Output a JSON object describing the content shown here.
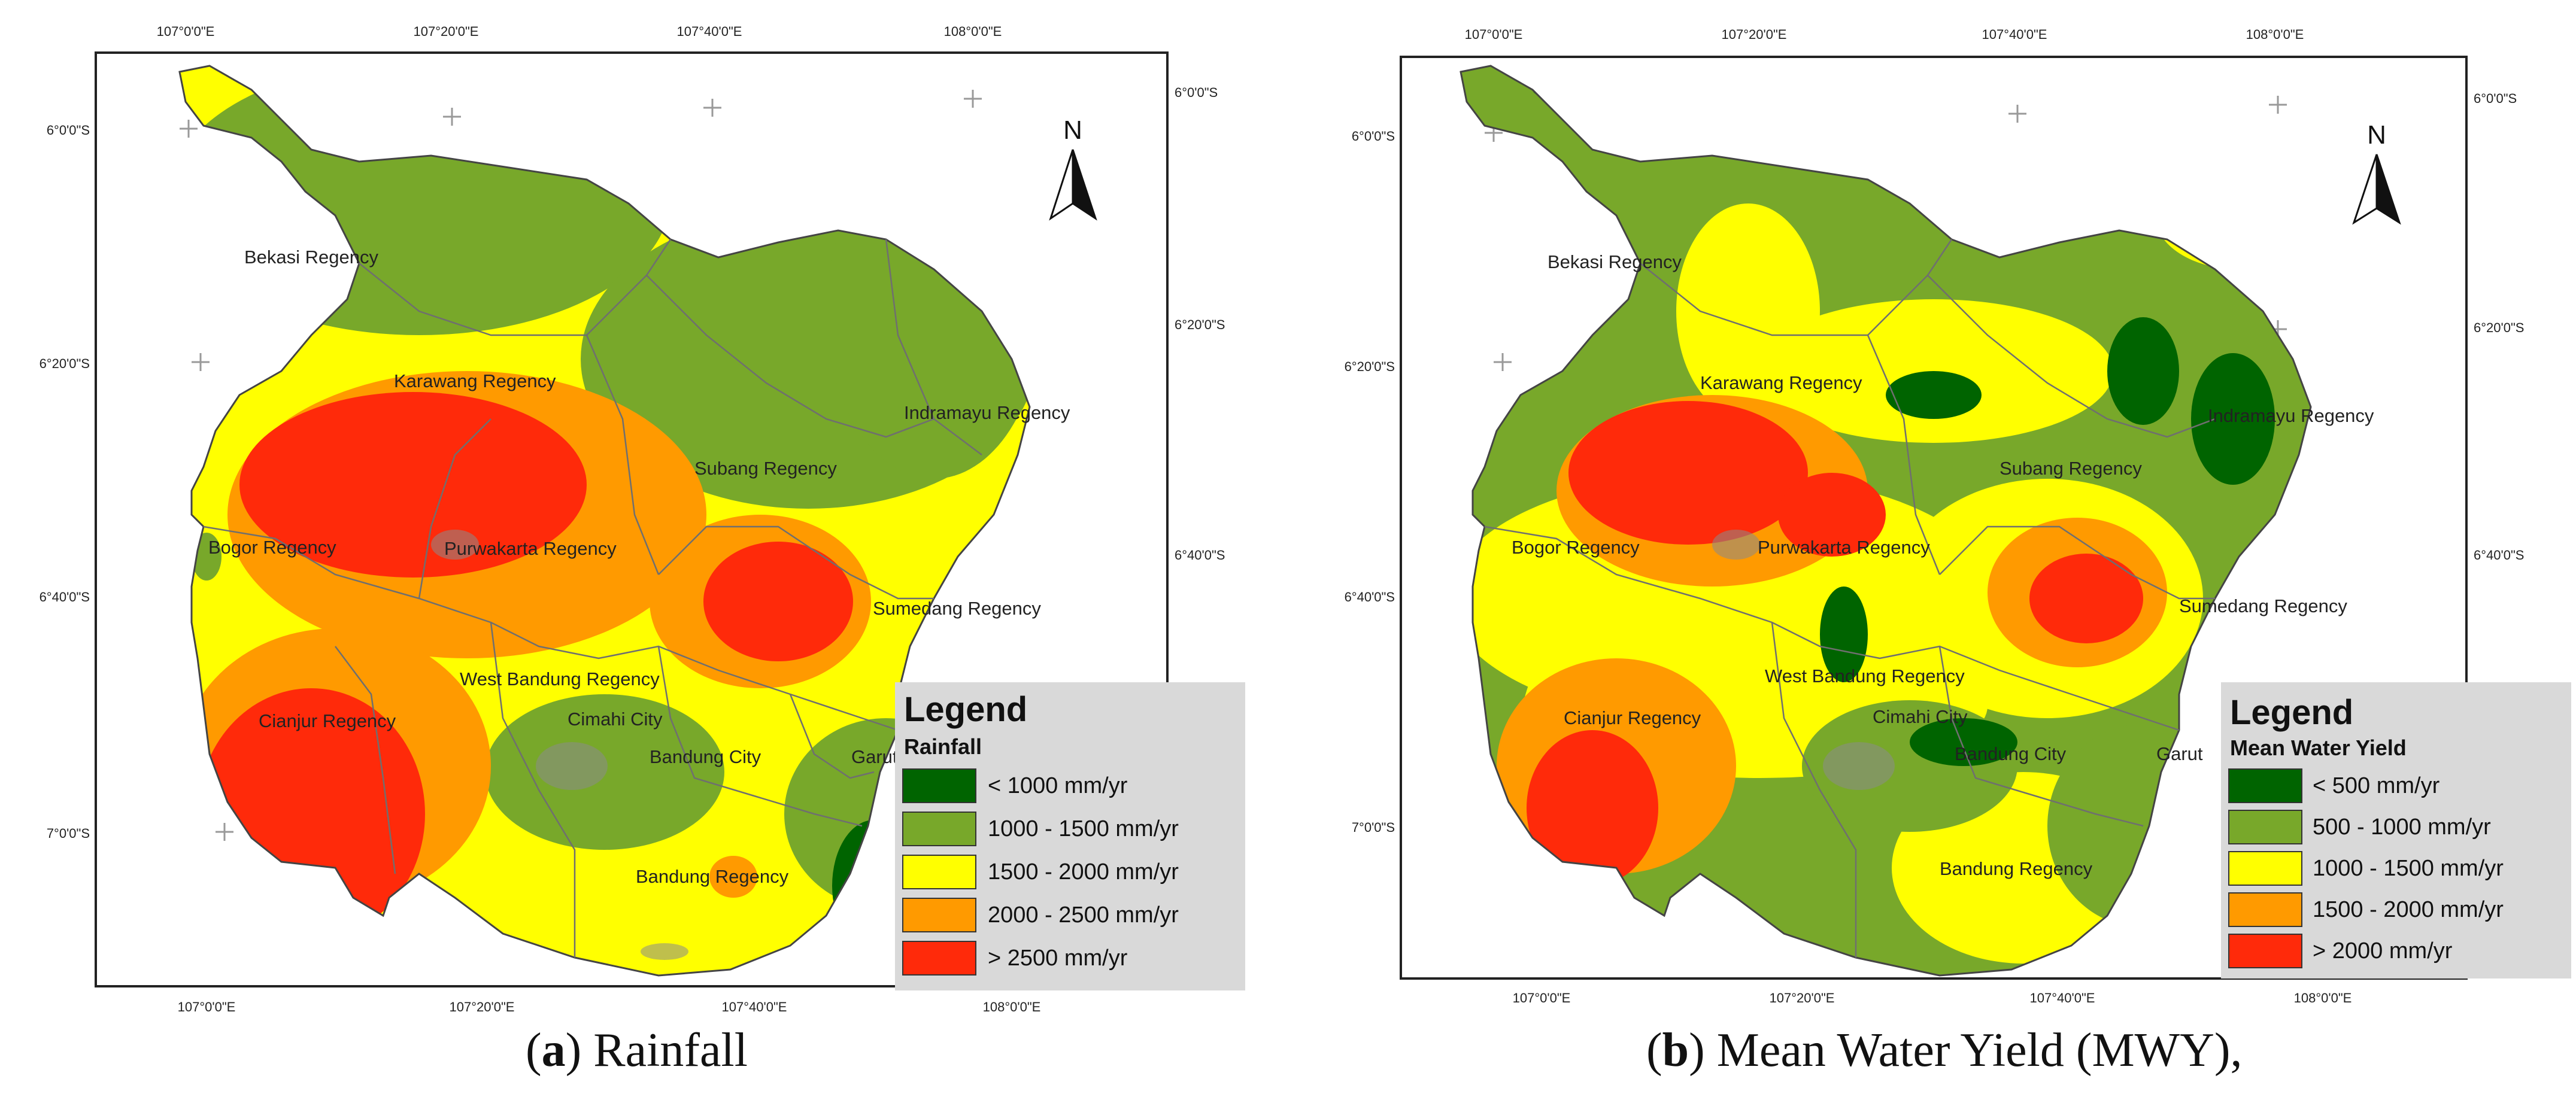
{
  "colors": {
    "dark_green": "#006400",
    "green": "#78a82a",
    "yellow": "#ffff00",
    "orange": "#ff9a00",
    "red": "#ff2a0a",
    "legend_bg": "#d9d9d9"
  },
  "panels": [
    {
      "caption_letter": "a",
      "caption_text": ") Rainfall",
      "caption_open": "(",
      "top_ticks": [
        "107°0'0\"E",
        "107°20'0\"E",
        "107°40'0\"E",
        "108°0'0\"E"
      ],
      "bottom_ticks": [
        "107°0'0\"E",
        "107°20'0\"E",
        "107°40'0\"E",
        "108°0'0\"E"
      ],
      "left_ticks": [
        "6°0'0\"S",
        "6°20'0\"S",
        "6°40'0\"S",
        "7°0'0\"S"
      ],
      "right_ticks": [
        "6°0'0\"S",
        "6°20'0\"S",
        "6°40'0\"S"
      ],
      "north_label": "N",
      "regions": [
        "Bekasi Regency",
        "Karawang Regency",
        "Indramayu Regency",
        "Subang Regency",
        "Bogor Regency",
        "Purwakarta Regency",
        "Sumedang Regency",
        "West Bandung Regency",
        "Cianjur Regency",
        "Cimahi City",
        "Bandung City",
        "Garut",
        "Bandung Regency"
      ],
      "legend": {
        "title": "Legend",
        "subtitle": "Rainfall",
        "items": [
          {
            "label": "< 1000 mm/yr",
            "color": "#006400"
          },
          {
            "label": "1000 - 1500 mm/yr",
            "color": "#78a82a"
          },
          {
            "label": "1500  -  2000 mm/yr",
            "color": "#ffff00"
          },
          {
            "label": "2000 - 2500 mm/yr",
            "color": "#ff9a00"
          },
          {
            "label": "> 2500 mm/yr",
            "color": "#ff2a0a"
          }
        ]
      }
    },
    {
      "caption_letter": "b",
      "caption_text": ") Mean Water Yield (MWY),",
      "caption_open": "(",
      "top_ticks": [
        "107°0'0\"E",
        "107°20'0\"E",
        "107°40'0\"E",
        "108°0'0\"E"
      ],
      "bottom_ticks": [
        "107°0'0\"E",
        "107°20'0\"E",
        "107°40'0\"E",
        "108°0'0\"E"
      ],
      "left_ticks": [
        "6°0'0\"S",
        "6°20'0\"S",
        "6°40'0\"S",
        "7°0'0\"S"
      ],
      "right_ticks": [
        "6°0'0\"S",
        "6°20'0\"S",
        "6°40'0\"S"
      ],
      "north_label": "N",
      "regions": [
        "Bekasi Regency",
        "Karawang Regency",
        "Indramayu Regency",
        "Subang Regency",
        "Bogor Regency",
        "Purwakarta Regency",
        "Sumedang Regency",
        "West Bandung Regency",
        "Cianjur Regency",
        "Cimahi City",
        "Bandung City",
        "Garut",
        "Bandung Regency"
      ],
      "legend": {
        "title": "Legend",
        "subtitle": "Mean Water Yield",
        "items": [
          {
            "label": "< 500 mm/yr",
            "color": "#006400"
          },
          {
            "label": "500 - 1000 mm/yr",
            "color": "#78a82a"
          },
          {
            "label": "1000 - 1500 mm/yr",
            "color": "#ffff00"
          },
          {
            "label": "1500 - 2000 mm/yr",
            "color": "#ff9a00"
          },
          {
            "label": "> 2000 mm/yr",
            "color": "#ff2a0a"
          }
        ]
      }
    }
  ]
}
